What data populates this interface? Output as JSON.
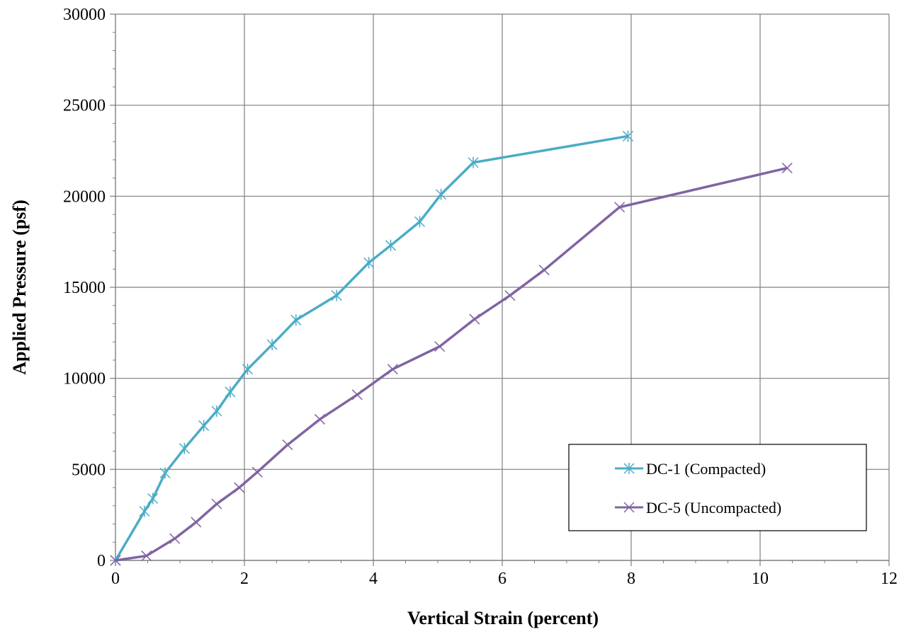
{
  "chart_data": {
    "type": "line",
    "title": "",
    "xlabel": "Vertical Strain (percent)",
    "ylabel": "Applied Pressure (psf)",
    "xlim": [
      0,
      12
    ],
    "ylim": [
      0,
      30000
    ],
    "x_ticks": [
      0,
      2,
      4,
      6,
      8,
      10,
      12
    ],
    "y_ticks": [
      0,
      5000,
      10000,
      15000,
      20000,
      25000,
      30000
    ],
    "x_minor_step": 0.5,
    "y_minor_step": 1000,
    "grid": true,
    "legend": "bottom-right",
    "series": [
      {
        "name": "DC-1 (Compacted)",
        "color": "#4bacc6",
        "marker": "asterisk",
        "x": [
          0,
          0.45,
          0.58,
          0.77,
          1.07,
          1.37,
          1.57,
          1.78,
          2.05,
          2.43,
          2.8,
          3.43,
          3.93,
          4.27,
          4.72,
          5.05,
          5.55,
          7.95
        ],
        "y": [
          0,
          2700,
          3400,
          4800,
          6150,
          7400,
          8200,
          9250,
          10500,
          11850,
          13200,
          14550,
          16350,
          17300,
          18600,
          20100,
          21850,
          23300
        ]
      },
      {
        "name": "DC-5 (Uncompacted)",
        "color": "#8064a2",
        "marker": "x",
        "x": [
          0,
          0.48,
          0.92,
          1.25,
          1.57,
          1.92,
          2.2,
          2.67,
          3.17,
          3.75,
          4.3,
          5.03,
          5.57,
          6.12,
          6.65,
          7.82,
          10.42
        ],
        "y": [
          0,
          250,
          1200,
          2100,
          3100,
          4000,
          4850,
          6350,
          7750,
          9100,
          10500,
          11750,
          13250,
          14550,
          15950,
          19400,
          21550
        ]
      }
    ]
  }
}
